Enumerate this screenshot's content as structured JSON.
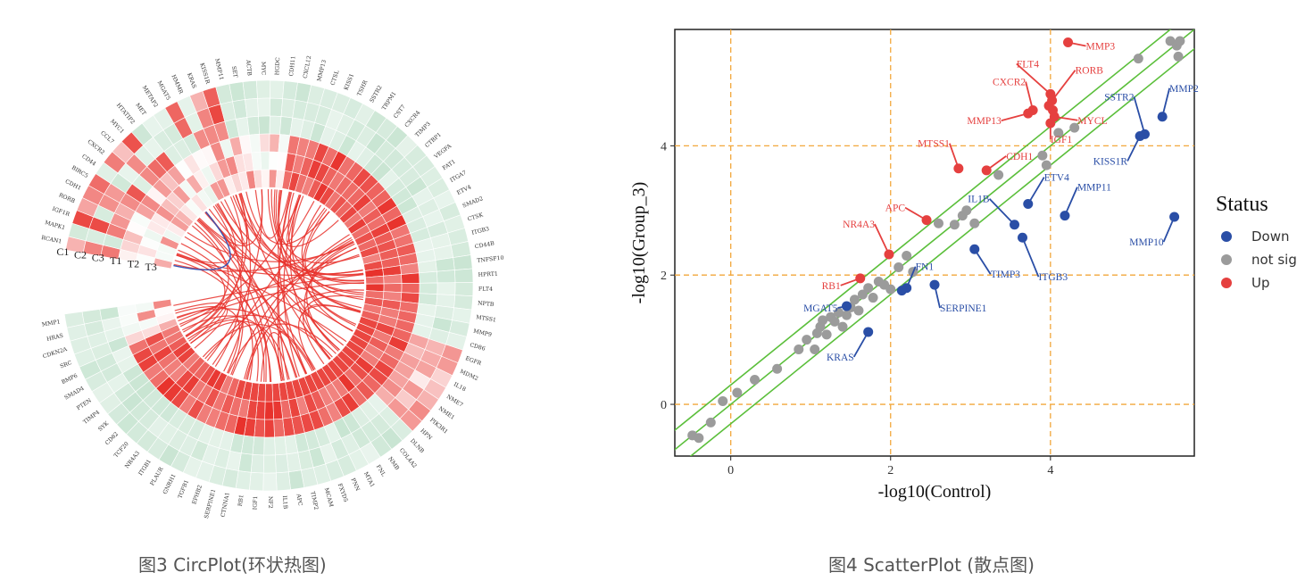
{
  "captions": {
    "left": "图3 CircPlot(环状热图)",
    "right": "图4 ScatterPlot (散点图)"
  },
  "chart_data": [
    {
      "type": "heatmap",
      "layout": "circular",
      "rows": [
        "C1",
        "C2",
        "C3",
        "T1",
        "T2",
        "T3"
      ],
      "genes": [
        "RCAN1",
        "MAPK1",
        "IGF1R",
        "RORB",
        "CDH1",
        "BIRC5",
        "CD44",
        "CXCR2",
        "CCL7",
        "MYC1",
        "HTATIP2",
        "MET",
        "METAP2",
        "MGAT5",
        "HMMR",
        "KRAS",
        "KISS1R",
        "MMP11",
        "SET",
        "ACTB",
        "MYC",
        "HGDC",
        "CDH11",
        "CXCL12",
        "MMP13",
        "CTSL",
        "KISS1",
        "TSHR",
        "SSTR2",
        "TRPM1",
        "CST7",
        "CXCR4",
        "TIMP3",
        "CTBP1",
        "VEGFA",
        "FAT1",
        "ITGA7",
        "ETV4",
        "SMAD2",
        "CTSK",
        "ITGB3",
        "CD44B",
        "TNFSF10",
        "HPRT1",
        "FLT4",
        "NPTB",
        "MTSS1",
        "MMP9",
        "CD86",
        "EGFR",
        "MDM2",
        "IL18",
        "NME7",
        "NME1",
        "PIK3R1",
        "HPN",
        "DLNB",
        "COL4A2",
        "NMB",
        "FNL",
        "MTA1",
        "PNN",
        "FXYD5",
        "MCAM",
        "TIMP2",
        "APC",
        "IL1B",
        "NF2",
        "IGF1",
        "RB1",
        "CTNNA1",
        "SERPINE1",
        "EPHB2",
        "TGFB1",
        "GNRH1",
        "PLAUR",
        "ITGB1",
        "NR4A3",
        "TCF20",
        "CD82",
        "SYK",
        "TIMP4",
        "PTEN",
        "SMAD4",
        "BMP6",
        "SRC",
        "CDKN2A",
        "HRAS",
        "MMP1"
      ],
      "colors": {
        "high": "#e8312b",
        "mid": "#ffffff",
        "low": "#b6dcc3"
      }
    },
    {
      "type": "scatter",
      "xlabel": "-log10(Control)",
      "ylabel": "-log10(Group_3)",
      "xlim": [
        -0.7,
        5.8
      ],
      "ylim": [
        -0.8,
        5.8
      ],
      "xticks": [
        0,
        2,
        4
      ],
      "yticks": [
        0,
        2,
        4
      ],
      "legend": {
        "title": "Status",
        "position": "right",
        "entries": [
          {
            "label": "Down",
            "color": "#2a4ea6"
          },
          {
            "label": "not sig",
            "color": "#9b9b9b"
          },
          {
            "label": "Up",
            "color": "#e5403f"
          }
        ]
      },
      "threshold_lines": {
        "color": "#5bbf3b",
        "offsets": [
          -0.3,
          0,
          0.3
        ]
      },
      "series": [
        {
          "name": "Up",
          "color": "#e5403f",
          "points": [
            {
              "x": 4.22,
              "y": 5.6,
              "label": "MMP3"
            },
            {
              "x": 4.0,
              "y": 4.8,
              "label": "FLT4"
            },
            {
              "x": 4.02,
              "y": 4.7,
              "label": "RORB"
            },
            {
              "x": 3.98,
              "y": 4.62
            },
            {
              "x": 4.03,
              "y": 4.55
            },
            {
              "x": 3.78,
              "y": 4.55,
              "label": "CXCR2"
            },
            {
              "x": 3.72,
              "y": 4.5,
              "label": "MMP13"
            },
            {
              "x": 4.05,
              "y": 4.45,
              "label": "MYCL"
            },
            {
              "x": 4.0,
              "y": 4.35,
              "label": "IGF1"
            },
            {
              "x": 2.85,
              "y": 3.65,
              "label": "MTSS1"
            },
            {
              "x": 3.2,
              "y": 3.62,
              "label": "CDH1"
            },
            {
              "x": 2.45,
              "y": 2.85,
              "label": "APC"
            },
            {
              "x": 1.98,
              "y": 2.32,
              "label": "NR4A3"
            },
            {
              "x": 1.62,
              "y": 1.95,
              "label": "RB1"
            }
          ]
        },
        {
          "name": "Down",
          "color": "#2a4ea6",
          "points": [
            {
              "x": 5.55,
              "y": 2.9,
              "label": "MMP10"
            },
            {
              "x": 5.4,
              "y": 4.45,
              "label": "MMP2"
            },
            {
              "x": 5.18,
              "y": 4.18,
              "label": "SSTR2"
            },
            {
              "x": 5.12,
              "y": 4.15,
              "label": "KISS1R"
            },
            {
              "x": 4.18,
              "y": 2.92,
              "label": "MMP11"
            },
            {
              "x": 3.72,
              "y": 3.1,
              "label": "ETV4"
            },
            {
              "x": 3.55,
              "y": 2.78,
              "label": "IL1B"
            },
            {
              "x": 3.65,
              "y": 2.58,
              "label": "ITGB3"
            },
            {
              "x": 3.05,
              "y": 2.4,
              "label": "TIMP3"
            },
            {
              "x": 2.55,
              "y": 1.85,
              "label": "SERPINE1"
            },
            {
              "x": 2.2,
              "y": 1.8,
              "label": "FN1"
            },
            {
              "x": 2.14,
              "y": 1.76
            },
            {
              "x": 1.45,
              "y": 1.52,
              "label": "MGAT5"
            },
            {
              "x": 1.72,
              "y": 1.12,
              "label": "KRAS"
            }
          ]
        },
        {
          "name": "not sig",
          "color": "#9b9b9b",
          "points": [
            {
              "x": -0.48,
              "y": -0.48
            },
            {
              "x": -0.4,
              "y": -0.52
            },
            {
              "x": -0.25,
              "y": -0.28
            },
            {
              "x": -0.1,
              "y": 0.05
            },
            {
              "x": 0.08,
              "y": 0.18
            },
            {
              "x": 0.3,
              "y": 0.38
            },
            {
              "x": 0.58,
              "y": 0.55
            },
            {
              "x": 0.85,
              "y": 0.85
            },
            {
              "x": 0.95,
              "y": 1.0
            },
            {
              "x": 1.05,
              "y": 0.85
            },
            {
              "x": 1.08,
              "y": 1.1
            },
            {
              "x": 1.12,
              "y": 1.2
            },
            {
              "x": 1.15,
              "y": 1.3
            },
            {
              "x": 1.2,
              "y": 1.08
            },
            {
              "x": 1.25,
              "y": 1.35
            },
            {
              "x": 1.3,
              "y": 1.28
            },
            {
              "x": 1.35,
              "y": 1.42
            },
            {
              "x": 1.4,
              "y": 1.2
            },
            {
              "x": 1.45,
              "y": 1.38
            },
            {
              "x": 1.5,
              "y": 1.5
            },
            {
              "x": 1.55,
              "y": 1.62
            },
            {
              "x": 1.6,
              "y": 1.45
            },
            {
              "x": 1.65,
              "y": 1.7
            },
            {
              "x": 1.72,
              "y": 1.8
            },
            {
              "x": 1.78,
              "y": 1.65
            },
            {
              "x": 1.85,
              "y": 1.9
            },
            {
              "x": 1.92,
              "y": 1.85
            },
            {
              "x": 2.0,
              "y": 1.78
            },
            {
              "x": 2.1,
              "y": 2.12
            },
            {
              "x": 2.2,
              "y": 2.3
            },
            {
              "x": 2.28,
              "y": 2.05
            },
            {
              "x": 2.6,
              "y": 2.8
            },
            {
              "x": 2.8,
              "y": 2.78
            },
            {
              "x": 2.9,
              "y": 2.92
            },
            {
              "x": 2.95,
              "y": 3.0
            },
            {
              "x": 3.05,
              "y": 2.8
            },
            {
              "x": 3.35,
              "y": 3.55
            },
            {
              "x": 3.9,
              "y": 3.85
            },
            {
              "x": 3.95,
              "y": 3.7
            },
            {
              "x": 4.1,
              "y": 4.2
            },
            {
              "x": 4.3,
              "y": 4.28
            },
            {
              "x": 5.1,
              "y": 5.35
            },
            {
              "x": 5.5,
              "y": 5.62
            },
            {
              "x": 5.58,
              "y": 5.55
            },
            {
              "x": 5.6,
              "y": 5.38
            },
            {
              "x": 5.62,
              "y": 5.62
            }
          ]
        }
      ]
    }
  ]
}
